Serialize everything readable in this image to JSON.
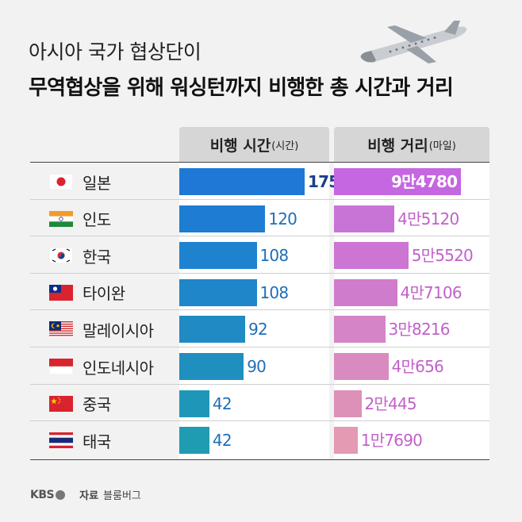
{
  "title": {
    "line1": "아시아 국가 협상단이",
    "line2": "무역협상을 위해 워싱턴까지 비행한 총 시간과 거리"
  },
  "columns": {
    "time_label": "비행 시간",
    "time_unit": "(시간)",
    "distance_label": "비행 거리",
    "distance_unit": "(마일)"
  },
  "rows": [
    {
      "country": "일본",
      "flag": "japan-flag-icon",
      "time": "175",
      "distance": "9만4780"
    },
    {
      "country": "인도",
      "flag": "india-flag-icon",
      "time": "120",
      "distance": "4만5120"
    },
    {
      "country": "한국",
      "flag": "korea-flag-icon",
      "time": "108",
      "distance": "5만5520"
    },
    {
      "country": "타이완",
      "flag": "taiwan-flag-icon",
      "time": "108",
      "distance": "4만7106"
    },
    {
      "country": "말레이시아",
      "flag": "malaysia-flag-icon",
      "time": "92",
      "distance": "3만8216"
    },
    {
      "country": "인도네시아",
      "flag": "indonesia-flag-icon",
      "time": "90",
      "distance": "4만656"
    },
    {
      "country": "중국",
      "flag": "china-flag-icon",
      "time": "42",
      "distance": "2만445"
    },
    {
      "country": "태국",
      "flag": "thailand-flag-icon",
      "time": "42",
      "distance": "1만7690"
    }
  ],
  "chart_data": [
    {
      "type": "bar",
      "title": "비행 시간(시간)",
      "categories": [
        "일본",
        "인도",
        "한국",
        "타이완",
        "말레이시아",
        "인도네시아",
        "중국",
        "태국"
      ],
      "values": [
        175,
        120,
        108,
        108,
        92,
        90,
        42,
        42
      ]
    },
    {
      "type": "bar",
      "title": "비행 거리(마일)",
      "categories": [
        "일본",
        "인도",
        "한국",
        "타이완",
        "말레이시아",
        "인도네시아",
        "중국",
        "태국"
      ],
      "values": [
        94780,
        45120,
        55520,
        47106,
        38216,
        40656,
        20445,
        17690
      ]
    }
  ],
  "colors": {
    "time_bars": [
      "#1f78d6",
      "#1e7dd2",
      "#1f82cf",
      "#1f86ca",
      "#1f8ac4",
      "#1f8fbf",
      "#1e96b8",
      "#1f9bb2"
    ],
    "distance_bars": [
      "#c467e0",
      "#c874d7",
      "#cc75d2",
      "#d07ccd",
      "#d484c7",
      "#d98bc0",
      "#dd91b8",
      "#e39ab2"
    ]
  },
  "footer": {
    "logo": "KBS",
    "source_label": "자료",
    "source": "블룸버그"
  }
}
